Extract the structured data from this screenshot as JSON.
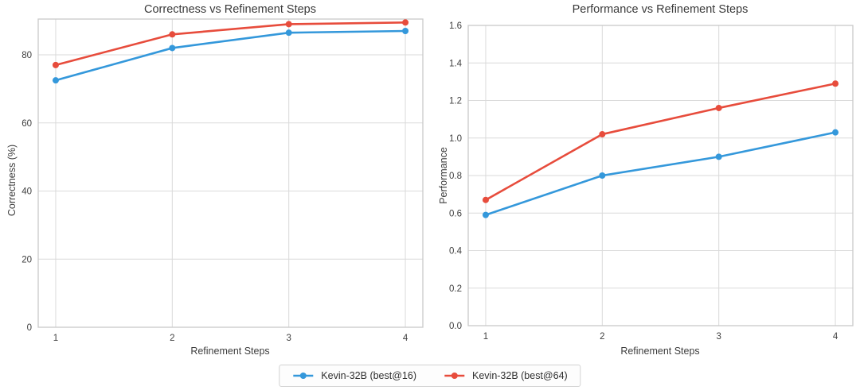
{
  "page": {
    "background": "#ffffff",
    "text_color": "#3a3a3a",
    "grid_color": "#dadada",
    "border_color": "#c9c9c9"
  },
  "legend": {
    "items": [
      {
        "label": "Kevin-32B (best@16)",
        "color": "#3498db"
      },
      {
        "label": "Kevin-32B (best@64)",
        "color": "#e74c3c"
      }
    ],
    "position": "bottom-center",
    "shared": true
  },
  "chart_data": [
    {
      "type": "line",
      "title": "Correctness vs Refinement Steps",
      "xlabel": "Refinement Steps",
      "ylabel": "Correctness (%)",
      "x": [
        1,
        2,
        3,
        4
      ],
      "series": [
        {
          "name": "Kevin-32B (best@16)",
          "color": "#3498db",
          "values": [
            72.5,
            82,
            86.5,
            87
          ]
        },
        {
          "name": "Kevin-32B (best@64)",
          "color": "#e74c3c",
          "values": [
            77,
            86,
            89,
            89.5
          ]
        }
      ],
      "xlim": [
        0.85,
        4.15
      ],
      "ylim": [
        0,
        90.5
      ],
      "xticks": [
        1,
        2,
        3,
        4
      ],
      "ytick_values": [
        0,
        20,
        40,
        60,
        80
      ],
      "ytick_labels": [
        "0",
        "20",
        "40",
        "60",
        "80"
      ],
      "grid": true,
      "marker": "circle",
      "legend_position": "figure-bottom-center"
    },
    {
      "type": "line",
      "title": "Performance vs Refinement Steps",
      "xlabel": "Refinement Steps",
      "ylabel": "Performance",
      "x": [
        1,
        2,
        3,
        4
      ],
      "series": [
        {
          "name": "Kevin-32B (best@16)",
          "color": "#3498db",
          "values": [
            0.59,
            0.8,
            0.9,
            1.03
          ]
        },
        {
          "name": "Kevin-32B (best@64)",
          "color": "#e74c3c",
          "values": [
            0.67,
            1.02,
            1.16,
            1.29
          ]
        }
      ],
      "xlim": [
        0.85,
        4.15
      ],
      "ylim": [
        0,
        1.6
      ],
      "xticks": [
        1,
        2,
        3,
        4
      ],
      "ytick_values": [
        0,
        0.2,
        0.4,
        0.6,
        0.8,
        1.0,
        1.2,
        1.4,
        1.6
      ],
      "ytick_labels": [
        "0.0",
        "0.2",
        "0.4",
        "0.6",
        "0.8",
        "1.0",
        "1.2",
        "1.4",
        "1.6"
      ],
      "grid": true,
      "marker": "circle",
      "legend_position": "figure-bottom-center"
    }
  ]
}
